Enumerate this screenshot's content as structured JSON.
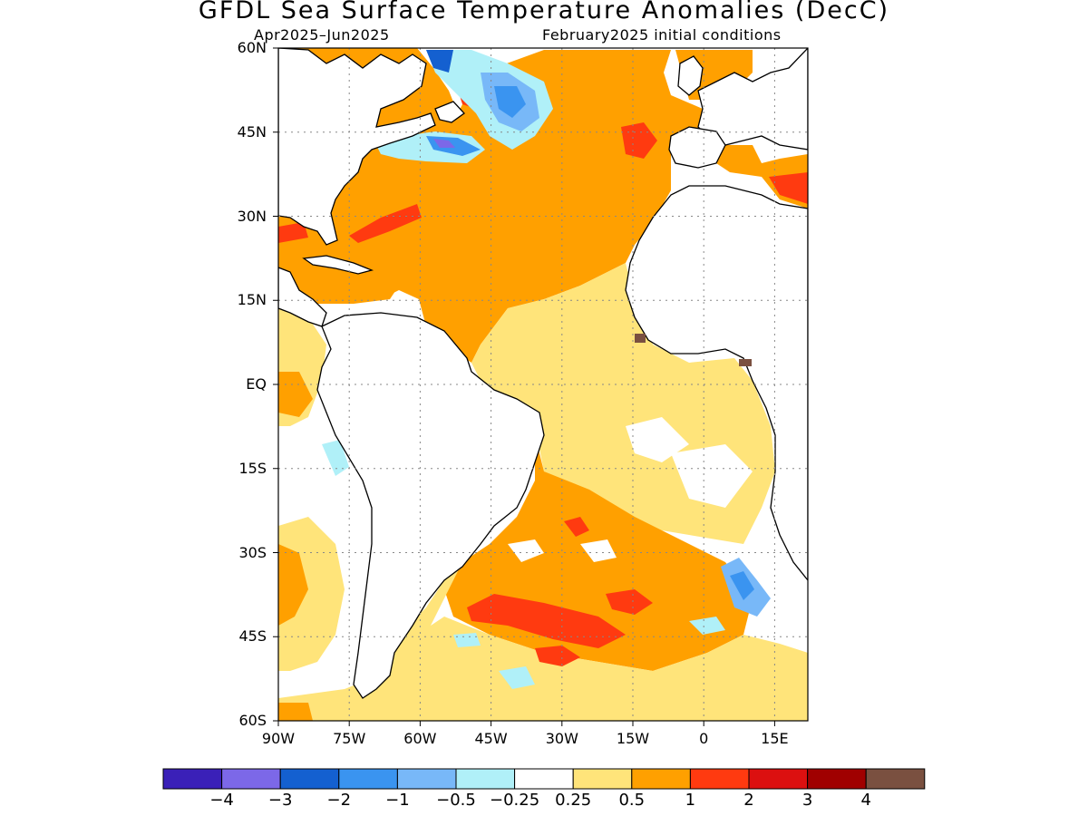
{
  "title": "GFDL Sea Surface Temperature Anomalies (DecC)",
  "subtitle_left": "Apr2025–Jun2025",
  "subtitle_right": "February2025 initial conditions",
  "lat_labels": [
    "60N",
    "45N",
    "30N",
    "15N",
    "EQ",
    "15S",
    "30S",
    "45S",
    "60S"
  ],
  "lon_labels": [
    "90W",
    "75W",
    "60W",
    "45W",
    "30W",
    "15W",
    "0",
    "15E"
  ],
  "colorbar": {
    "colors": [
      "#3a20b8",
      "#7c68e8",
      "#1460d0",
      "#3a94f0",
      "#78b8f8",
      "#b0f0f8",
      "#ffffff",
      "#ffe47a",
      "#ffa000",
      "#ff3a10",
      "#dc1010",
      "#a00000",
      "#7a5040"
    ],
    "labels": [
      "−4",
      "−3",
      "−2",
      "−1",
      "−0.5",
      "−0.25",
      "0.25",
      "0.5",
      "1",
      "2",
      "3",
      "4"
    ]
  },
  "colors": {
    "orange": "#ffa000",
    "yellow": "#ffe47a",
    "red": "#ff3a10",
    "darkred": "#dc1010",
    "cyan": "#b0f0f8",
    "lightblue": "#78b8f8",
    "blue": "#3a94f0",
    "deepblue": "#1460d0",
    "purple": "#7c68e8",
    "brown": "#7a5040"
  }
}
